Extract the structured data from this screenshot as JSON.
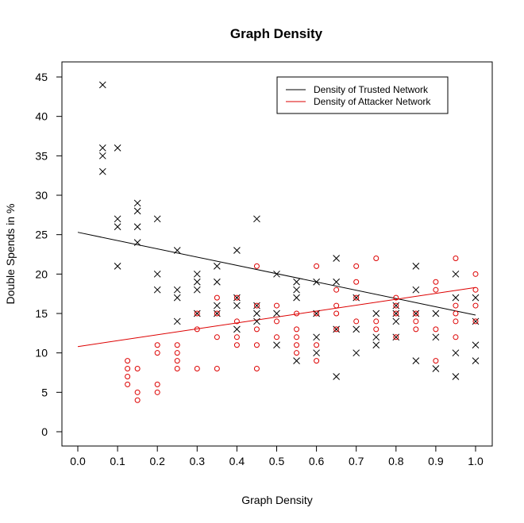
{
  "chart_data": {
    "type": "scatter",
    "title": "Graph Density",
    "xlabel": "Graph Density",
    "ylabel": "Double Spends in %",
    "xlim": [
      0,
      1
    ],
    "ylim": [
      0,
      45
    ],
    "xticks": [
      "0.0",
      "0.1",
      "0.2",
      "0.3",
      "0.4",
      "0.5",
      "0.6",
      "0.7",
      "0.8",
      "0.9",
      "1.0"
    ],
    "yticks": [
      "0",
      "5",
      "10",
      "15",
      "20",
      "25",
      "30",
      "35",
      "40",
      "45"
    ],
    "legend_position": "top-right",
    "series": [
      {
        "name": "Density of Trusted Network",
        "color": "#000000",
        "marker": "x",
        "trend_line": [
          [
            0.0,
            25.3
          ],
          [
            1.0,
            14.8
          ]
        ],
        "points": [
          [
            0.0625,
            44
          ],
          [
            0.0625,
            36
          ],
          [
            0.0625,
            35
          ],
          [
            0.0625,
            33
          ],
          [
            0.1,
            36
          ],
          [
            0.1,
            27
          ],
          [
            0.1,
            26
          ],
          [
            0.1,
            21
          ],
          [
            0.15,
            29
          ],
          [
            0.15,
            28
          ],
          [
            0.15,
            26
          ],
          [
            0.15,
            24
          ],
          [
            0.2,
            27
          ],
          [
            0.2,
            20
          ],
          [
            0.2,
            18
          ],
          [
            0.25,
            23
          ],
          [
            0.25,
            18
          ],
          [
            0.25,
            17
          ],
          [
            0.25,
            14
          ],
          [
            0.3,
            20
          ],
          [
            0.3,
            19
          ],
          [
            0.3,
            18
          ],
          [
            0.3,
            15
          ],
          [
            0.35,
            21
          ],
          [
            0.35,
            19
          ],
          [
            0.35,
            16
          ],
          [
            0.35,
            15
          ],
          [
            0.4,
            23
          ],
          [
            0.4,
            17
          ],
          [
            0.4,
            16
          ],
          [
            0.4,
            13
          ],
          [
            0.45,
            27
          ],
          [
            0.45,
            16
          ],
          [
            0.45,
            15
          ],
          [
            0.45,
            14
          ],
          [
            0.5,
            20
          ],
          [
            0.5,
            15
          ],
          [
            0.5,
            11
          ],
          [
            0.55,
            19
          ],
          [
            0.55,
            18
          ],
          [
            0.55,
            17
          ],
          [
            0.55,
            9
          ],
          [
            0.6,
            19
          ],
          [
            0.6,
            15
          ],
          [
            0.6,
            12
          ],
          [
            0.6,
            10
          ],
          [
            0.65,
            22
          ],
          [
            0.65,
            19
          ],
          [
            0.65,
            13
          ],
          [
            0.65,
            7
          ],
          [
            0.7,
            17
          ],
          [
            0.7,
            13
          ],
          [
            0.7,
            10
          ],
          [
            0.75,
            15
          ],
          [
            0.75,
            12
          ],
          [
            0.75,
            11
          ],
          [
            0.8,
            16
          ],
          [
            0.8,
            15
          ],
          [
            0.8,
            14
          ],
          [
            0.8,
            12
          ],
          [
            0.85,
            21
          ],
          [
            0.85,
            18
          ],
          [
            0.85,
            15
          ],
          [
            0.85,
            9
          ],
          [
            0.9,
            15
          ],
          [
            0.9,
            12
          ],
          [
            0.9,
            8
          ],
          [
            0.95,
            20
          ],
          [
            0.95,
            17
          ],
          [
            0.95,
            10
          ],
          [
            0.95,
            7
          ],
          [
            1.0,
            17
          ],
          [
            1.0,
            14
          ],
          [
            1.0,
            11
          ],
          [
            1.0,
            9
          ]
        ]
      },
      {
        "name": "Density of Attacker Network",
        "color": "#dd0000",
        "marker": "o",
        "trend_line": [
          [
            0.0,
            10.8
          ],
          [
            1.0,
            18.3
          ]
        ],
        "points": [
          [
            0.125,
            9
          ],
          [
            0.125,
            8
          ],
          [
            0.125,
            7
          ],
          [
            0.125,
            6
          ],
          [
            0.15,
            8
          ],
          [
            0.15,
            5
          ],
          [
            0.15,
            4
          ],
          [
            0.2,
            11
          ],
          [
            0.2,
            10
          ],
          [
            0.2,
            6
          ],
          [
            0.2,
            5
          ],
          [
            0.25,
            11
          ],
          [
            0.25,
            10
          ],
          [
            0.25,
            9
          ],
          [
            0.25,
            8
          ],
          [
            0.3,
            15
          ],
          [
            0.3,
            13
          ],
          [
            0.3,
            8
          ],
          [
            0.35,
            17
          ],
          [
            0.35,
            15
          ],
          [
            0.35,
            12
          ],
          [
            0.35,
            8
          ],
          [
            0.4,
            17
          ],
          [
            0.4,
            14
          ],
          [
            0.4,
            12
          ],
          [
            0.4,
            11
          ],
          [
            0.45,
            21
          ],
          [
            0.45,
            16
          ],
          [
            0.45,
            13
          ],
          [
            0.45,
            11
          ],
          [
            0.45,
            8
          ],
          [
            0.5,
            16
          ],
          [
            0.5,
            14
          ],
          [
            0.5,
            12
          ],
          [
            0.55,
            15
          ],
          [
            0.55,
            13
          ],
          [
            0.55,
            12
          ],
          [
            0.55,
            11
          ],
          [
            0.55,
            10
          ],
          [
            0.6,
            21
          ],
          [
            0.6,
            15
          ],
          [
            0.6,
            11
          ],
          [
            0.6,
            9
          ],
          [
            0.65,
            18
          ],
          [
            0.65,
            16
          ],
          [
            0.65,
            15
          ],
          [
            0.65,
            13
          ],
          [
            0.7,
            21
          ],
          [
            0.7,
            19
          ],
          [
            0.7,
            17
          ],
          [
            0.7,
            14
          ],
          [
            0.75,
            22
          ],
          [
            0.75,
            14
          ],
          [
            0.75,
            13
          ],
          [
            0.8,
            17
          ],
          [
            0.8,
            16
          ],
          [
            0.8,
            15
          ],
          [
            0.8,
            12
          ],
          [
            0.85,
            15
          ],
          [
            0.85,
            14
          ],
          [
            0.85,
            13
          ],
          [
            0.9,
            19
          ],
          [
            0.9,
            18
          ],
          [
            0.9,
            13
          ],
          [
            0.9,
            9
          ],
          [
            0.95,
            22
          ],
          [
            0.95,
            16
          ],
          [
            0.95,
            15
          ],
          [
            0.95,
            14
          ],
          [
            0.95,
            12
          ],
          [
            1.0,
            20
          ],
          [
            1.0,
            18
          ],
          [
            1.0,
            16
          ],
          [
            1.0,
            14
          ]
        ]
      }
    ]
  }
}
